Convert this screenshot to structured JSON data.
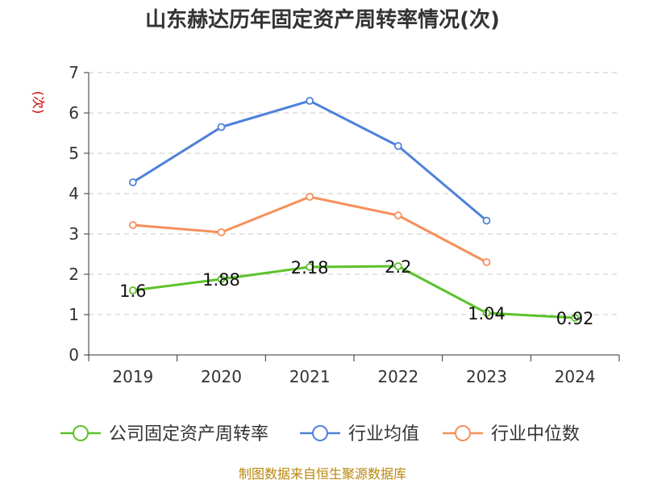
{
  "chart_data": {
    "type": "line",
    "title": "山东赫达历年固定资产周转率情况(次)",
    "ylabel": "(次)",
    "xlabel": "",
    "ylim": [
      0,
      7
    ],
    "yticks": [
      "0",
      "1",
      "2",
      "3",
      "4",
      "5",
      "6",
      "7"
    ],
    "categories": [
      "2019",
      "2020",
      "2021",
      "2022",
      "2023",
      "2024"
    ],
    "grid": true,
    "legend_position": "bottom",
    "series": [
      {
        "name": "公司固定资产周转率",
        "color": "#5cc22a",
        "values": [
          1.6,
          1.88,
          2.18,
          2.2,
          1.04,
          0.92
        ],
        "labels": [
          "1.6",
          "1.88",
          "2.18",
          "2.2",
          "1.04",
          "0.92"
        ]
      },
      {
        "name": "行业均值",
        "color": "#4f81d9",
        "values": [
          4.28,
          5.65,
          6.3,
          5.18,
          3.33,
          null
        ]
      },
      {
        "name": "行业中位数",
        "color": "#f5905a",
        "values": [
          3.22,
          3.04,
          3.92,
          3.46,
          2.3,
          null
        ]
      }
    ]
  },
  "source_text": "制图数据来自恒生聚源数据库"
}
